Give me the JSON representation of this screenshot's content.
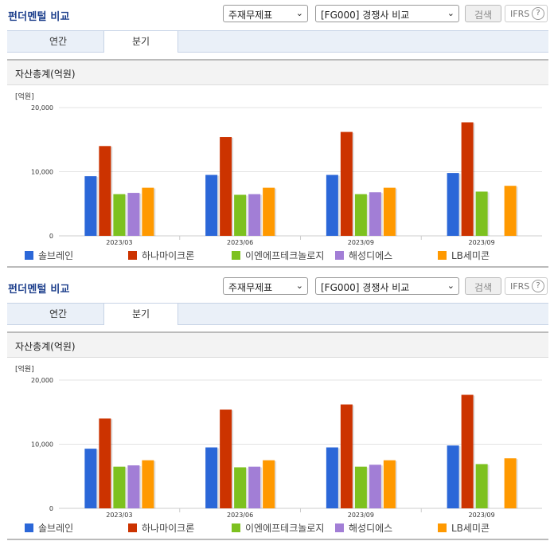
{
  "panels": [
    {
      "title": "펀더멘털 비교",
      "select_1": "주재무제표",
      "select_2": "[FG000] 경쟁사 비교",
      "search_label": "검색",
      "ifrs_label": "IFRS",
      "ifrs_help": "?",
      "tabs": [
        "연간",
        "분기"
      ],
      "active_tab": 1,
      "chart_caption": "자산총계(억원)"
    },
    {
      "title": "펀더멘털 비교",
      "select_1": "주재무제표",
      "select_2": "[FG000] 경쟁사 비교",
      "search_label": "검색",
      "ifrs_label": "IFRS",
      "ifrs_help": "?",
      "tabs": [
        "연간",
        "분기"
      ],
      "active_tab": 1,
      "chart_caption": "자산총계(억원)"
    }
  ],
  "chart_data": [
    {
      "type": "bar",
      "unit_label": "[억원]",
      "categories": [
        "2023/03",
        "2023/06",
        "2023/09",
        "2023/09"
      ],
      "yticks": [
        "0",
        "10,000",
        "20,000"
      ],
      "ylim": [
        0,
        20000
      ],
      "grid": true,
      "legend_position": "bottom",
      "series": [
        {
          "name": "솔브레인",
          "color": "#2b67d8",
          "values": [
            9300,
            9500,
            9500,
            9800
          ]
        },
        {
          "name": "하나마이크론",
          "color": "#cc3300",
          "values": [
            14000,
            15400,
            16200,
            17700
          ]
        },
        {
          "name": "이엔에프테크놀로지",
          "color": "#7dc11f",
          "values": [
            6500,
            6400,
            6500,
            6900
          ]
        },
        {
          "name": "해성디에스",
          "color": "#a27ed6",
          "values": [
            6700,
            6500,
            6800,
            null
          ]
        },
        {
          "name": "LB세미콘",
          "color": "#ff9900",
          "values": [
            7500,
            7500,
            7500,
            7800
          ]
        }
      ]
    },
    {
      "type": "bar",
      "unit_label": "[억원]",
      "categories": [
        "2023/03",
        "2023/06",
        "2023/09",
        "2023/09"
      ],
      "yticks": [
        "0",
        "10,000",
        "20,000"
      ],
      "ylim": [
        0,
        20000
      ],
      "grid": true,
      "legend_position": "bottom",
      "series": [
        {
          "name": "솔브레인",
          "color": "#2b67d8",
          "values": [
            9300,
            9500,
            9500,
            9800
          ]
        },
        {
          "name": "하나마이크론",
          "color": "#cc3300",
          "values": [
            14000,
            15400,
            16200,
            17700
          ]
        },
        {
          "name": "이엔에프테크놀로지",
          "color": "#7dc11f",
          "values": [
            6500,
            6400,
            6500,
            6900
          ]
        },
        {
          "name": "해성디에스",
          "color": "#a27ed6",
          "values": [
            6700,
            6500,
            6800,
            null
          ]
        },
        {
          "name": "LB세미콘",
          "color": "#ff9900",
          "values": [
            7500,
            7500,
            7500,
            7800
          ]
        }
      ]
    }
  ]
}
